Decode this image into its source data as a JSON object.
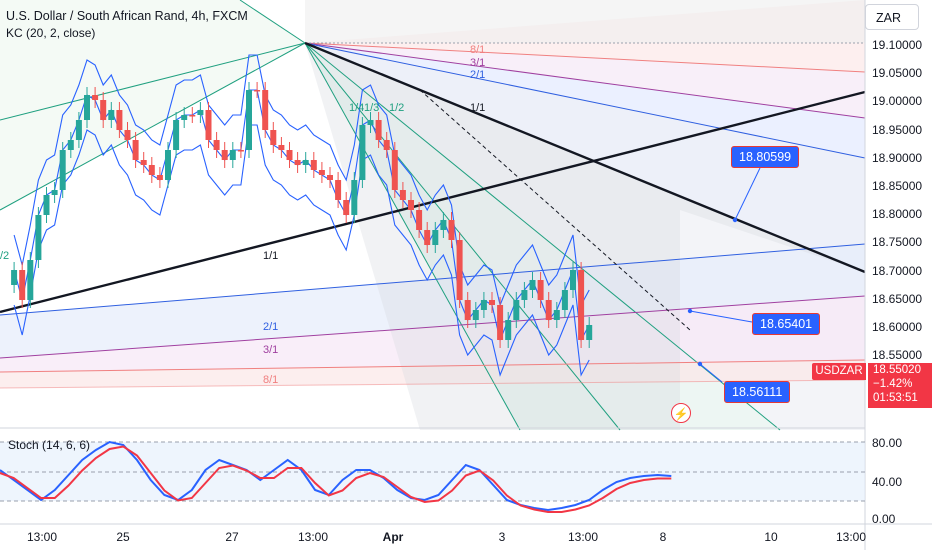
{
  "header": {
    "title": "U.S. Dollar / South African Rand, 4h, FXCM",
    "kc_label": "KC (20, 2, close)",
    "stoch_label": "Stoch (14, 6, 6)",
    "currency": "ZAR"
  },
  "price_axis": {
    "ticks": [
      "19.10000",
      "19.05000",
      "19.00000",
      "18.95000",
      "18.90000",
      "18.85000",
      "18.80000",
      "18.75000",
      "18.70000",
      "18.65000",
      "18.60000",
      "18.55000"
    ]
  },
  "stoch_axis": {
    "ticks": [
      "80.00",
      "40.00",
      "0.00"
    ]
  },
  "time_axis": {
    "ticks": [
      "13:00",
      "25",
      "27",
      "13:00",
      "Apr",
      "3",
      "13:00",
      "8",
      "10",
      "13:00"
    ]
  },
  "current_price": {
    "symbol": "USDZAR",
    "price": "18.55020",
    "change": "−1.42%",
    "countdown": "01:53:51"
  },
  "tags": {
    "upper": "18.80599",
    "middle": "18.65401",
    "lower": "18.56111"
  },
  "fan_labels": {
    "upper_right": [
      "8/1",
      "3/1",
      "2/1"
    ],
    "upper_left": [
      "1/4",
      "1/3",
      "1/2",
      "1/1"
    ],
    "lower": [
      "2/1",
      "3/1",
      "8/1"
    ],
    "main": "1/1",
    "left_edge": "/2"
  },
  "colors": {
    "up": "#26a69a",
    "down": "#ef5350",
    "kc": "#2962ff",
    "stoch_k": "#2962ff",
    "stoch_d": "#f23645",
    "tag": "#2962ff",
    "price_marker": "#f23645"
  }
}
